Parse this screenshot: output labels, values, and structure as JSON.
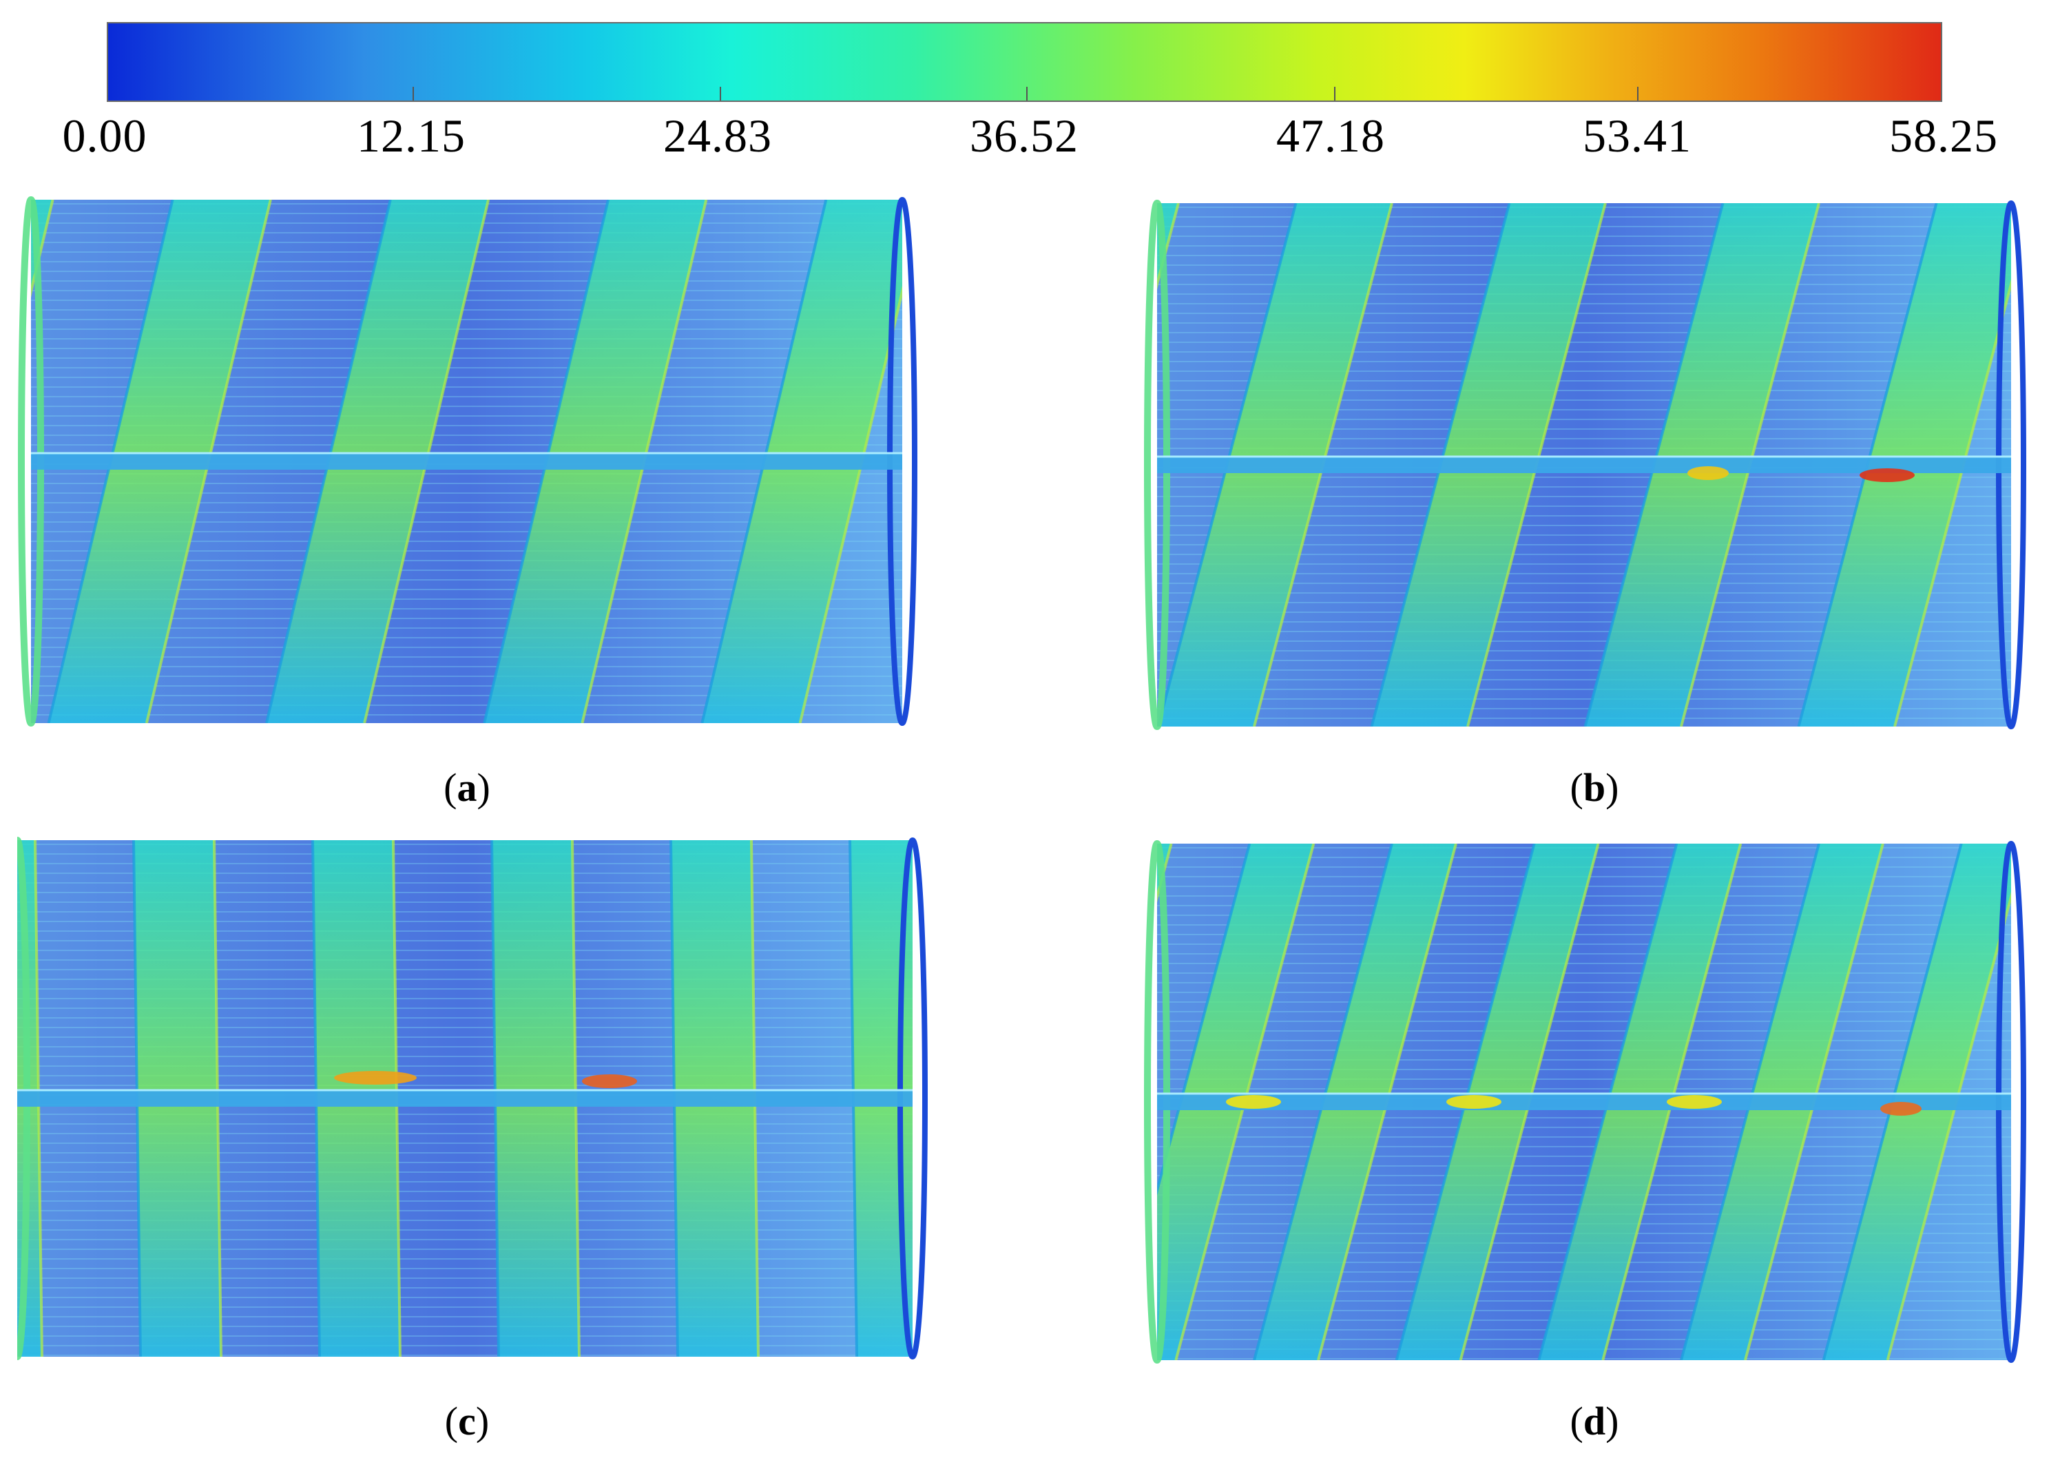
{
  "colorbar": {
    "labels": [
      "0.00",
      "12.15",
      "24.83",
      "36.52",
      "47.18",
      "53.41",
      "58.25"
    ],
    "colors": [
      "#0a2ad8",
      "#14c9e8",
      "#19f2d8",
      "#86f04a",
      "#f0ee14",
      "#ec7a10",
      "#e02a16"
    ]
  },
  "panels": [
    {
      "id": "a",
      "caption_open": "(",
      "caption_letter": "a",
      "caption_close": ")"
    },
    {
      "id": "b",
      "caption_open": "(",
      "caption_letter": "b",
      "caption_close": ")"
    },
    {
      "id": "c",
      "caption_open": "(",
      "caption_letter": "c",
      "caption_close": ")"
    },
    {
      "id": "d",
      "caption_open": "(",
      "caption_letter": "d",
      "caption_close": ")"
    }
  ]
}
